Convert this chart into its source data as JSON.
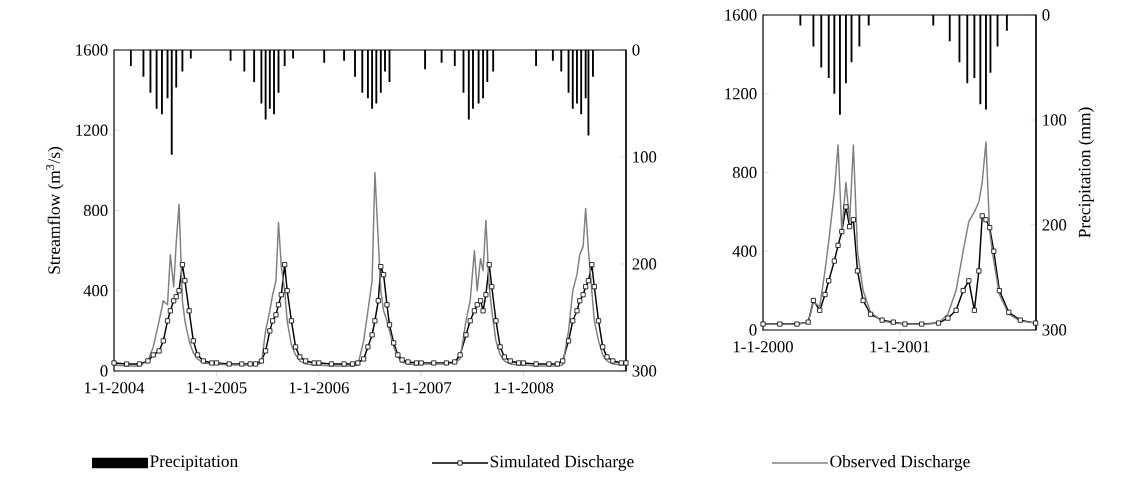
{
  "chart_data": [
    {
      "type": "line",
      "ylabel": "Streamflow  (m$^{3}$/s)",
      "legend": "bottom",
      "x": [
        "2004-01-01",
        "2004-02-15",
        "2004-04-01",
        "2004-05-01",
        "2004-05-20",
        "2004-06-10",
        "2004-06-25",
        "2004-07-10",
        "2004-07-20",
        "2004-08-01",
        "2004-08-10",
        "2004-08-20",
        "2004-09-01",
        "2004-09-10",
        "2004-09-25",
        "2004-10-10",
        "2004-10-25",
        "2004-11-15",
        "2004-12-15",
        "2005-01-01",
        "2005-02-15",
        "2005-04-01",
        "2005-05-01",
        "2005-05-20",
        "2005-06-10",
        "2005-06-25",
        "2005-07-10",
        "2005-07-20",
        "2005-08-01",
        "2005-08-10",
        "2005-08-20",
        "2005-09-01",
        "2005-09-10",
        "2005-09-25",
        "2005-10-10",
        "2005-10-25",
        "2005-11-15",
        "2005-12-15",
        "2006-01-01",
        "2006-02-15",
        "2006-04-01",
        "2006-05-01",
        "2006-05-20",
        "2006-06-10",
        "2006-06-25",
        "2006-07-10",
        "2006-07-20",
        "2006-08-01",
        "2006-08-10",
        "2006-08-20",
        "2006-09-01",
        "2006-09-10",
        "2006-09-25",
        "2006-10-10",
        "2006-10-25",
        "2006-11-15",
        "2006-12-15",
        "2007-01-01",
        "2007-02-15",
        "2007-04-01",
        "2007-05-01",
        "2007-05-20",
        "2007-06-10",
        "2007-06-25",
        "2007-07-10",
        "2007-07-20",
        "2007-08-01",
        "2007-08-10",
        "2007-08-20",
        "2007-09-01",
        "2007-09-10",
        "2007-09-25",
        "2007-10-10",
        "2007-10-25",
        "2007-11-15",
        "2007-12-15",
        "2008-01-01",
        "2008-02-15",
        "2008-04-01",
        "2008-05-01",
        "2008-05-20",
        "2008-06-10",
        "2008-06-25",
        "2008-07-10",
        "2008-07-20",
        "2008-08-01",
        "2008-08-10",
        "2008-08-20",
        "2008-09-01",
        "2008-09-10",
        "2008-09-25",
        "2008-10-10",
        "2008-10-25",
        "2008-11-15",
        "2008-12-15",
        "2009-01-01"
      ],
      "xlim": [
        "2004-01-01",
        "2009-01-01"
      ],
      "xticks": [
        {
          "value": "2004-01-01",
          "label": "1-1-2004"
        },
        {
          "value": "2005-01-01",
          "label": "1-1-2005"
        },
        {
          "value": "2006-01-01",
          "label": "1-1-2006"
        },
        {
          "value": "2007-01-01",
          "label": "1-1-2007"
        },
        {
          "value": "2008-01-01",
          "label": "1-1-2008"
        },
        {
          "value": "2009-01-01",
          "label": null
        }
      ],
      "ylim": [
        0,
        1600
      ],
      "yticks": [
        0,
        400,
        800,
        1200,
        1600
      ],
      "y2lim": [
        300,
        0
      ],
      "y2ticks": [
        0,
        100,
        200,
        300
      ],
      "series": [
        {
          "name": "Precipitation",
          "type": "bar",
          "axis": "y2",
          "color": "#000000",
          "x": [
            "2004-03-01",
            "2004-04-15",
            "2004-05-10",
            "2004-06-01",
            "2004-06-20",
            "2004-07-10",
            "2004-07-25",
            "2004-08-10",
            "2004-09-01",
            "2004-10-01",
            "2005-02-20",
            "2005-04-10",
            "2005-05-15",
            "2005-06-10",
            "2005-06-25",
            "2005-07-10",
            "2005-07-25",
            "2005-08-10",
            "2005-09-01",
            "2005-10-01",
            "2006-01-20",
            "2006-04-01",
            "2006-05-10",
            "2006-06-05",
            "2006-06-25",
            "2006-07-10",
            "2006-07-25",
            "2006-08-10",
            "2006-08-25",
            "2006-09-10",
            "2007-01-15",
            "2007-03-15",
            "2007-05-01",
            "2007-06-01",
            "2007-06-20",
            "2007-07-05",
            "2007-07-25",
            "2007-08-10",
            "2007-08-25",
            "2007-09-15",
            "2008-02-15",
            "2008-04-15",
            "2008-05-15",
            "2008-06-10",
            "2008-06-25",
            "2008-07-10",
            "2008-07-25",
            "2008-08-10",
            "2008-08-20",
            "2008-09-05"
          ],
          "values": [
            15,
            25,
            40,
            55,
            60,
            45,
            98,
            35,
            20,
            8,
            10,
            20,
            30,
            50,
            65,
            55,
            60,
            40,
            15,
            8,
            12,
            10,
            25,
            40,
            45,
            55,
            50,
            40,
            20,
            30,
            18,
            12,
            15,
            40,
            65,
            55,
            50,
            45,
            30,
            20,
            15,
            10,
            20,
            40,
            55,
            50,
            60,
            45,
            80,
            25
          ]
        },
        {
          "name": "Simulated Discharge",
          "color": "#000000",
          "marker": "square",
          "values": [
            40,
            35,
            35,
            50,
            80,
            100,
            150,
            250,
            300,
            350,
            370,
            400,
            530,
            450,
            300,
            150,
            80,
            50,
            40,
            40,
            35,
            35,
            35,
            35,
            50,
            100,
            200,
            250,
            280,
            330,
            380,
            530,
            400,
            250,
            120,
            70,
            50,
            40,
            40,
            35,
            35,
            35,
            40,
            60,
            120,
            180,
            250,
            350,
            520,
            480,
            330,
            230,
            140,
            80,
            55,
            45,
            40,
            40,
            40,
            40,
            45,
            80,
            180,
            250,
            300,
            330,
            350,
            300,
            380,
            530,
            420,
            250,
            120,
            70,
            50,
            40,
            40,
            35,
            35,
            35,
            50,
            150,
            250,
            300,
            350,
            380,
            420,
            450,
            530,
            420,
            250,
            120,
            70,
            50,
            40,
            40
          ]
        },
        {
          "name": "Observed Discharge",
          "color": "#808080",
          "values": [
            30,
            25,
            25,
            50,
            120,
            250,
            350,
            330,
            580,
            420,
            640,
            830,
            350,
            250,
            150,
            90,
            60,
            40,
            35,
            35,
            30,
            30,
            30,
            30,
            40,
            200,
            300,
            380,
            450,
            740,
            520,
            400,
            250,
            130,
            80,
            50,
            35,
            30,
            30,
            25,
            25,
            25,
            30,
            150,
            300,
            450,
            990,
            650,
            400,
            300,
            250,
            200,
            120,
            70,
            45,
            35,
            30,
            35,
            35,
            35,
            40,
            60,
            250,
            350,
            600,
            400,
            560,
            500,
            750,
            420,
            300,
            150,
            80,
            50,
            35,
            30,
            30,
            25,
            25,
            25,
            30,
            200,
            400,
            480,
            580,
            620,
            810,
            600,
            400,
            250,
            150,
            80,
            50,
            35,
            30,
            30
          ]
        }
      ]
    },
    {
      "type": "line",
      "y2label": "Precipitation (mm)",
      "x": [
        "2000-01-01",
        "2000-02-15",
        "2000-04-01",
        "2000-05-01",
        "2000-05-15",
        "2000-06-01",
        "2000-06-15",
        "2000-06-25",
        "2000-07-10",
        "2000-07-20",
        "2000-07-30",
        "2000-08-10",
        "2000-08-20",
        "2000-08-30",
        "2000-09-10",
        "2000-09-25",
        "2000-10-15",
        "2000-11-15",
        "2000-12-15",
        "2001-01-15",
        "2001-03-01",
        "2001-04-15",
        "2001-05-10",
        "2001-06-01",
        "2001-06-20",
        "2001-07-05",
        "2001-07-20",
        "2001-08-01",
        "2001-08-10",
        "2001-08-20",
        "2001-08-30",
        "2001-09-10",
        "2001-09-25",
        "2001-10-20",
        "2001-11-20",
        "2001-12-31"
      ],
      "xlim": [
        "2000-01-01",
        "2002-01-01"
      ],
      "xticks": [
        {
          "value": "2000-01-01",
          "label": "1-1-2000"
        },
        {
          "value": "2001-01-01",
          "label": "1-1-2001"
        },
        {
          "value": "2002-01-01",
          "label": null
        }
      ],
      "ylim": [
        0,
        1600
      ],
      "yticks": [
        0,
        400,
        800,
        1200,
        1600
      ],
      "y2lim": [
        300,
        0
      ],
      "y2ticks": [
        0,
        100,
        200,
        300
      ],
      "series": [
        {
          "type": "bar",
          "axis": "y2",
          "color": "#000000",
          "x": [
            "2000-04-10",
            "2000-05-15",
            "2000-06-05",
            "2000-06-25",
            "2000-07-10",
            "2000-07-25",
            "2000-08-10",
            "2000-08-25",
            "2000-09-15",
            "2000-10-10",
            "2001-04-01",
            "2001-05-15",
            "2001-06-10",
            "2001-07-01",
            "2001-07-20",
            "2001-08-05",
            "2001-08-20",
            "2001-09-01",
            "2001-09-20",
            "2001-10-15"
          ],
          "values": [
            10,
            30,
            50,
            60,
            75,
            95,
            65,
            45,
            30,
            10,
            10,
            25,
            45,
            65,
            60,
            85,
            90,
            55,
            30,
            15
          ]
        },
        {
          "color": "#000000",
          "marker": "square",
          "values": [
            30,
            30,
            30,
            40,
            150,
            100,
            180,
            250,
            350,
            430,
            500,
            625,
            525,
            560,
            300,
            150,
            80,
            50,
            40,
            30,
            30,
            35,
            60,
            100,
            200,
            250,
            100,
            300,
            580,
            560,
            520,
            400,
            200,
            90,
            50,
            35
          ]
        },
        {
          "color": "#808080",
          "values": [
            30,
            28,
            28,
            40,
            140,
            120,
            300,
            450,
            700,
            940,
            500,
            750,
            550,
            940,
            400,
            200,
            90,
            45,
            35,
            30,
            28,
            35,
            80,
            200,
            400,
            550,
            600,
            650,
            750,
            955,
            500,
            350,
            180,
            80,
            45,
            35
          ]
        }
      ]
    }
  ]
}
